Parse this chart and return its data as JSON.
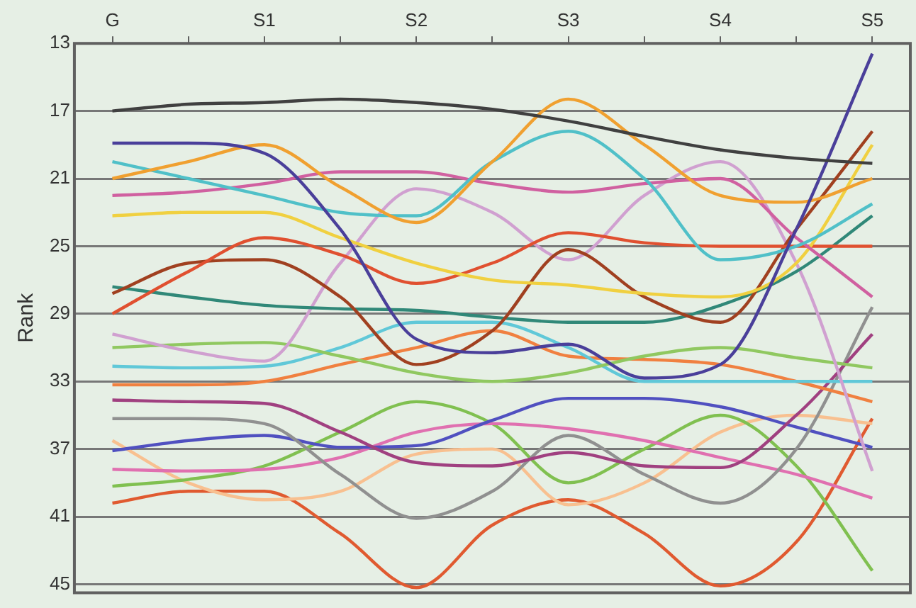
{
  "chart_data": {
    "type": "line",
    "ylabel": "Rank",
    "categories": [
      "G",
      null,
      "S1",
      null,
      "S2",
      null,
      "S3",
      null,
      "S4",
      null,
      "S5"
    ],
    "ylim": [
      45.5,
      13
    ],
    "yticks": [
      13,
      17,
      21,
      25,
      29,
      33,
      37,
      41,
      45
    ],
    "grid": "y",
    "legend": false,
    "marker": "none",
    "line_style": "solid",
    "series": [
      {
        "color": "#404040",
        "values": [
          17,
          16.6,
          16.5,
          16.3,
          16.5,
          16.9,
          17.6,
          18.5,
          19.3,
          19.8,
          20.1
        ]
      },
      {
        "color": "#4a3f9a",
        "values": [
          18.9,
          18.9,
          19.5,
          24,
          30.5,
          31.3,
          30.8,
          32.8,
          32,
          24,
          13.6
        ]
      },
      {
        "color": "#f0a030",
        "values": [
          21,
          20,
          19,
          21.5,
          23.6,
          20,
          16.3,
          19,
          22,
          22.4,
          21
        ]
      },
      {
        "color": "#50c0c8",
        "values": [
          20,
          21,
          22,
          23,
          23.2,
          20,
          18.2,
          21,
          25.8,
          25,
          22.5
        ]
      },
      {
        "color": "#d060a0",
        "values": [
          22,
          21.8,
          21.3,
          20.6,
          20.6,
          21.3,
          21.8,
          21.3,
          21,
          24.5,
          28
        ]
      },
      {
        "color": "#f0d040",
        "values": [
          23.2,
          23,
          23,
          24.5,
          26,
          27,
          27.3,
          27.8,
          28,
          26,
          19
        ]
      },
      {
        "color": "#e05030",
        "values": [
          29,
          26.5,
          24.5,
          25.5,
          27.2,
          26,
          24.2,
          24.8,
          25,
          25,
          25
        ]
      },
      {
        "color": "#a04020",
        "values": [
          27.8,
          26,
          25.8,
          28,
          32,
          30,
          25.2,
          28,
          29.5,
          24,
          18.2
        ]
      },
      {
        "color": "#308878",
        "values": [
          27.4,
          28,
          28.5,
          28.7,
          28.8,
          29.2,
          29.5,
          29.5,
          28.5,
          26.5,
          23.2
        ]
      },
      {
        "color": "#d0a0d0",
        "values": [
          30.2,
          31.2,
          31.8,
          26,
          21.6,
          23,
          25.8,
          22,
          20,
          26,
          38.3
        ]
      },
      {
        "color": "#90c860",
        "values": [
          31,
          30.8,
          30.7,
          31.5,
          32.5,
          33,
          32.5,
          31.5,
          31,
          31.6,
          32.2
        ]
      },
      {
        "color": "#60c8d8",
        "values": [
          32.1,
          32.2,
          32.1,
          31,
          29.5,
          29.5,
          31,
          33,
          33,
          33,
          33
        ]
      },
      {
        "color": "#f08040",
        "values": [
          33.2,
          33.2,
          33,
          32,
          31,
          30,
          31.5,
          31.7,
          32,
          33,
          34.2
        ]
      },
      {
        "color": "#a04080",
        "values": [
          34.1,
          34.2,
          34.3,
          36,
          37.8,
          38,
          37.2,
          38,
          38.1,
          35,
          30.2
        ]
      },
      {
        "color": "#909090",
        "values": [
          35.2,
          35.2,
          35.5,
          38.5,
          41.1,
          39.5,
          36.2,
          38.5,
          40.2,
          37,
          28.6
        ]
      },
      {
        "color": "#5050c0",
        "values": [
          37.1,
          36.5,
          36.2,
          36.9,
          36.8,
          35.3,
          34,
          34,
          34.5,
          35.7,
          36.9
        ]
      },
      {
        "color": "#e070b0",
        "values": [
          38.2,
          38.3,
          38.2,
          37.5,
          36,
          35.5,
          35.8,
          36.5,
          37.5,
          38.5,
          39.9
        ]
      },
      {
        "color": "#80c050",
        "values": [
          39.2,
          38.8,
          38,
          36,
          34.2,
          35.5,
          39,
          37,
          35,
          38,
          44.2
        ]
      },
      {
        "color": "#f8c090",
        "values": [
          36.5,
          39,
          40,
          39.5,
          37.3,
          37,
          40.3,
          39,
          36,
          35,
          35.5
        ]
      },
      {
        "color": "#e05a30",
        "values": [
          40.2,
          39.5,
          39.5,
          42,
          45.2,
          41.5,
          40,
          42,
          45.1,
          42.5,
          35.2
        ]
      }
    ]
  }
}
